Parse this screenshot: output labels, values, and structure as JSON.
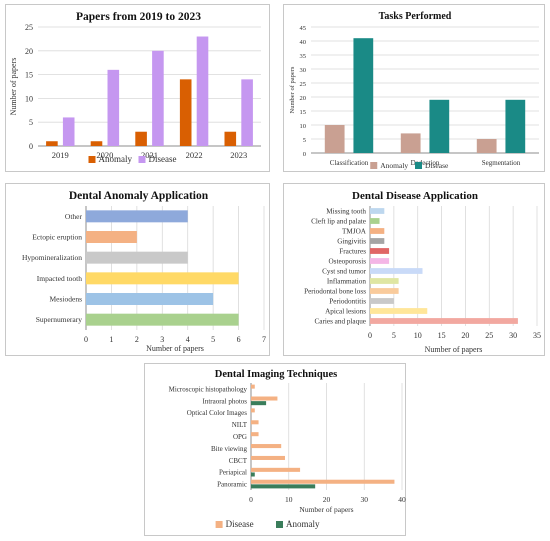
{
  "colors": {
    "anomaly_dark": "#d95f02",
    "disease_lilac": "#c597f0",
    "anomaly_rose": "#c9a092",
    "disease_teal": "#1a8a86",
    "imaging_disease": "#f4b183",
    "imaging_anomaly": "#3a7d5b",
    "grid": "#d9d9d9",
    "axis": "#8c8c8c"
  },
  "chart_data": [
    {
      "id": "papers-by-year",
      "type": "bar",
      "title": "Papers from 2019 to 2023",
      "ylabel": "Number of papers",
      "xlabel": "",
      "categories": [
        "2019",
        "2020",
        "2021",
        "2022",
        "2023"
      ],
      "series": [
        {
          "name": "Anomaly",
          "color": "#d95f02",
          "values": [
            1,
            1,
            3,
            14,
            3
          ]
        },
        {
          "name": "Disease",
          "color": "#c597f0",
          "values": [
            6,
            16,
            20,
            23,
            14
          ]
        }
      ],
      "ylim": [
        0,
        25
      ],
      "yticks": [
        0,
        5,
        10,
        15,
        20,
        25
      ],
      "grid": true,
      "legend": "bottom"
    },
    {
      "id": "tasks-performed",
      "type": "bar",
      "title": "Tasks Performed",
      "ylabel": "Number of papers",
      "xlabel": "",
      "categories": [
        "Classification",
        "Dedection",
        "Segmentation"
      ],
      "series": [
        {
          "name": "Anomaly",
          "color": "#c9a092",
          "values": [
            10,
            7,
            5
          ]
        },
        {
          "name": "Disease",
          "color": "#1a8a86",
          "values": [
            41,
            19,
            19
          ]
        }
      ],
      "ylim": [
        0,
        45
      ],
      "yticks": [
        0,
        5,
        10,
        15,
        20,
        25,
        30,
        35,
        40,
        45
      ],
      "grid": true,
      "legend": "bottom"
    },
    {
      "id": "dental-anomaly-application",
      "type": "bar",
      "orientation": "horizontal",
      "title": "Dental Anomaly Application",
      "xlabel": "Number of papers",
      "ylabel": "",
      "categories": [
        "Other",
        "Ectopic eruption",
        "Hypomineralization",
        "Impacted tooth",
        "Mesiodens",
        "Supernumerary"
      ],
      "values": [
        4,
        2,
        4,
        6,
        5,
        6
      ],
      "colors": [
        "#8ea9db",
        "#f4b183",
        "#c9c9c9",
        "#ffd966",
        "#9dc3e6",
        "#a9d18e"
      ],
      "xlim": [
        0,
        7
      ],
      "xticks": [
        0,
        1,
        2,
        3,
        4,
        5,
        6,
        7
      ],
      "grid": true
    },
    {
      "id": "dental-disease-application",
      "type": "bar",
      "orientation": "horizontal",
      "title": "Dental Disease Application",
      "xlabel": "Number of papers",
      "ylabel": "",
      "categories": [
        "Missing tooth",
        "Cleft lip and palate",
        "TMJOA",
        "Gingivitis",
        "Fractures",
        "Osteoporosis",
        "Cyst snd tumor",
        "Inflammation",
        "Periodontal bone loss",
        "Periodontitis",
        "Apical lesions",
        "Caries and plaque"
      ],
      "values": [
        3,
        2,
        3,
        3,
        4,
        4,
        11,
        6,
        6,
        5,
        12,
        31
      ],
      "colors": [
        "#bdd7ee",
        "#a9d18e",
        "#f4b183",
        "#a5a5a5",
        "#e06666",
        "#f4b6e6",
        "#c9daf8",
        "#dfe6a3",
        "#f9cb9c",
        "#c9c9c9",
        "#ffe699",
        "#f2a8a0"
      ],
      "xlim": [
        0,
        35
      ],
      "xticks": [
        0,
        5,
        10,
        15,
        20,
        25,
        30,
        35
      ],
      "grid": true
    },
    {
      "id": "dental-imaging-techniques",
      "type": "bar",
      "orientation": "horizontal",
      "title": "Dental Imaging Techniques",
      "xlabel": "Number of papers",
      "ylabel": "",
      "categories": [
        "Microscopic histopathology",
        "Intraoral photos",
        "Optical Color Images",
        "NILT",
        "OPG",
        "Bite viewing",
        "CBCT",
        "Periapical",
        "Panoramic"
      ],
      "series": [
        {
          "name": "Disease",
          "color": "#f4b183",
          "values": [
            1,
            7,
            1,
            2,
            2,
            8,
            9,
            13,
            38
          ]
        },
        {
          "name": "Anomaly",
          "color": "#3a7d5b",
          "values": [
            0,
            4,
            0,
            0,
            0,
            0,
            0,
            1,
            17
          ]
        }
      ],
      "xlim": [
        0,
        40
      ],
      "xticks": [
        0,
        10,
        20,
        30,
        40
      ],
      "grid": true,
      "legend": "bottom"
    }
  ]
}
